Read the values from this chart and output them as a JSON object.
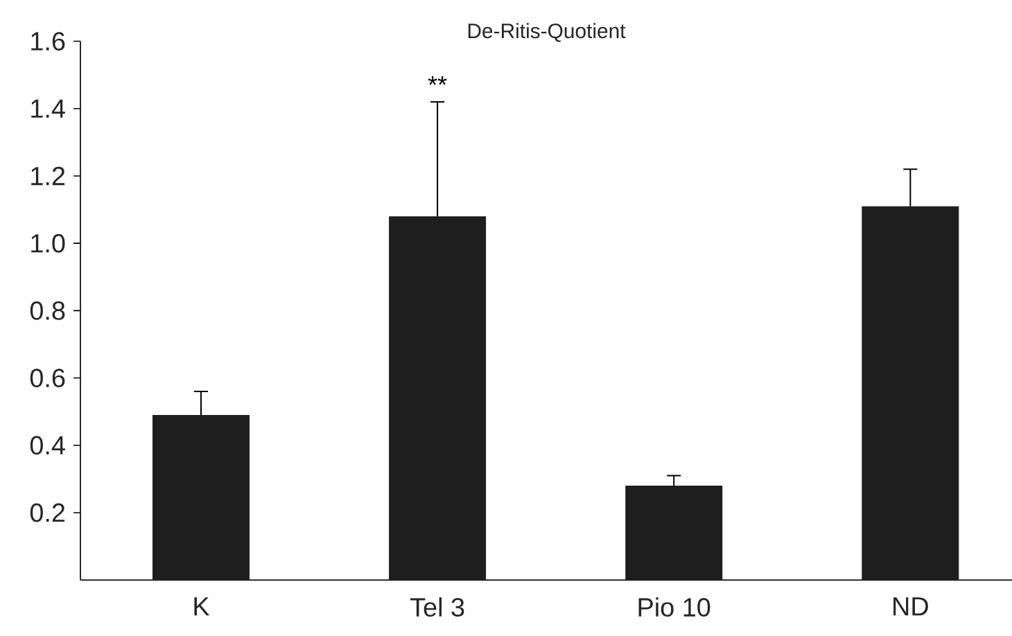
{
  "chart_data": {
    "type": "bar",
    "title": "De-Ritis-Quotient",
    "categories": [
      "K",
      "Tel 3",
      "Pio 10",
      "ND"
    ],
    "values": [
      0.49,
      1.08,
      0.28,
      1.11
    ],
    "errors": [
      [
        0.49,
        0.56
      ],
      [
        1.08,
        1.42
      ],
      [
        0.28,
        0.31
      ],
      [
        1.11,
        1.22
      ]
    ],
    "color": "#1e1e1e",
    "ylim": [
      0,
      1.6
    ],
    "yticks": [
      0.2,
      0.4,
      0.6,
      0.8,
      {
        "value": 1.0,
        "label": "1.0"
      },
      1.2,
      1.4,
      1.6
    ],
    "annotations": [
      "**"
    ]
  }
}
